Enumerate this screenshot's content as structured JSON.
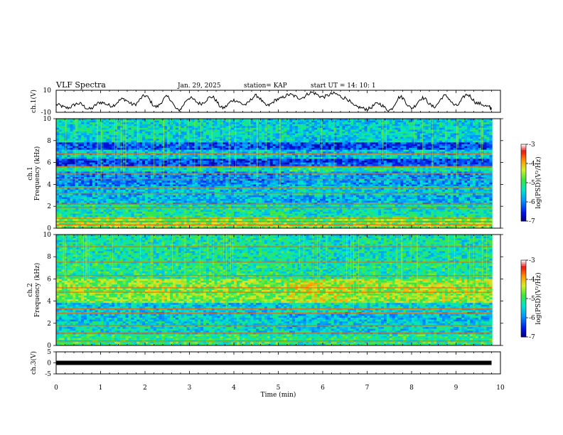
{
  "header": {
    "title": "VLF Spectra",
    "date": "Jan. 29, 2025",
    "station": "station= KAP",
    "start": "start  UT =   14: 10: 1"
  },
  "chart_data": [
    {
      "type": "line",
      "ylabel": "ch.1(V)",
      "ylim": [
        -10,
        10
      ],
      "yticks": [
        "10",
        "-10"
      ],
      "xlim": [
        0,
        10
      ],
      "series": [
        {
          "x": [
            0,
            0.25,
            0.5,
            0.75,
            1.0,
            1.25,
            1.5,
            1.75,
            2.0,
            2.25,
            2.5,
            2.75,
            3.0,
            3.25,
            3.5,
            3.75,
            4.0,
            4.25,
            4.5,
            4.75,
            5.0,
            5.25,
            5.5,
            5.75,
            6.0,
            6.25,
            6.5,
            6.75,
            7.0,
            7.25,
            7.5,
            7.75,
            8.0,
            8.25,
            8.5,
            8.75,
            9.0,
            9.25,
            9.5,
            9.75,
            9.8
          ],
          "values": [
            -3,
            -6,
            -2,
            -7,
            -1,
            -4,
            2,
            -3,
            5,
            -5,
            4,
            -8,
            3,
            -2,
            4,
            -6,
            1,
            -3,
            5,
            -4,
            2,
            6,
            3,
            8,
            4,
            7,
            3,
            -5,
            -7,
            -2,
            -8,
            4,
            -6,
            3,
            -5,
            5,
            -4,
            6,
            -2,
            -5,
            -7
          ]
        }
      ]
    },
    {
      "type": "heatmap",
      "ylabel": "ch.1\nFrequency (kHz)",
      "ylim": [
        0,
        10
      ],
      "yticks": [
        "0",
        "2",
        "4",
        "6",
        "8",
        "10"
      ],
      "xlim": [
        0,
        10
      ],
      "colorbar": {
        "label": "log(PSD)(V²/Hz)",
        "ticks": [
          "-3",
          "-4",
          "-5",
          "-6",
          "-7"
        ],
        "range": [
          -7,
          -3
        ]
      },
      "bands": [
        {
          "from": 0,
          "to": 1,
          "value": -4.6
        },
        {
          "from": 1,
          "to": 2.2,
          "value": -5.2
        },
        {
          "from": 2.2,
          "to": 3.8,
          "value": -5.6
        },
        {
          "from": 3.8,
          "to": 5.2,
          "value": -5.9
        },
        {
          "from": 5.2,
          "to": 5.6,
          "value": -5.3
        },
        {
          "from": 5.6,
          "to": 6.3,
          "value": -6.3
        },
        {
          "from": 6.3,
          "to": 7.2,
          "value": -5.5
        },
        {
          "from": 7.2,
          "to": 7.8,
          "value": -6.2
        },
        {
          "from": 7.8,
          "to": 10,
          "value": -5.4
        }
      ],
      "lines_khz": [
        0.3,
        0.6,
        0.9,
        1.9,
        2.2,
        3.2,
        3.7,
        4.5,
        5.0,
        5.6,
        6.8
      ]
    },
    {
      "type": "heatmap",
      "ylabel": "ch.2\nFrequency (kHz)",
      "ylim": [
        0,
        10
      ],
      "yticks": [
        "0",
        "2",
        "4",
        "6",
        "8",
        "10"
      ],
      "xlim": [
        0,
        10
      ],
      "colorbar": {
        "label": "log(PSD)(V²/Hz)",
        "ticks": [
          "-3",
          "-4",
          "-5",
          "-6",
          "-7"
        ],
        "range": [
          -7,
          -3
        ]
      },
      "bands": [
        {
          "from": 0,
          "to": 1,
          "value": -5.0
        },
        {
          "from": 1,
          "to": 2.2,
          "value": -5.4
        },
        {
          "from": 2.2,
          "to": 3.8,
          "value": -5.5
        },
        {
          "from": 3.8,
          "to": 6.0,
          "value": -4.6
        },
        {
          "from": 6.0,
          "to": 7.5,
          "value": -5.1
        },
        {
          "from": 7.5,
          "to": 10,
          "value": -5.2
        }
      ],
      "lines_khz": [
        0.4,
        1.1,
        1.8,
        2.9,
        3.3,
        4.8,
        5.2,
        6.3,
        7.5,
        8.9
      ]
    },
    {
      "type": "line",
      "ylabel": "ch.3(V)",
      "ylim": [
        -5,
        5
      ],
      "yticks": [
        "5",
        "0",
        "-5"
      ],
      "xlim": [
        0,
        10
      ],
      "series": [
        {
          "x": [
            0,
            9.8
          ],
          "values": [
            0,
            0
          ]
        }
      ]
    }
  ],
  "xaxis": {
    "label": "Time (min)",
    "ticks": [
      "0",
      "1",
      "2",
      "3",
      "4",
      "5",
      "6",
      "7",
      "8",
      "9",
      "10"
    ]
  }
}
